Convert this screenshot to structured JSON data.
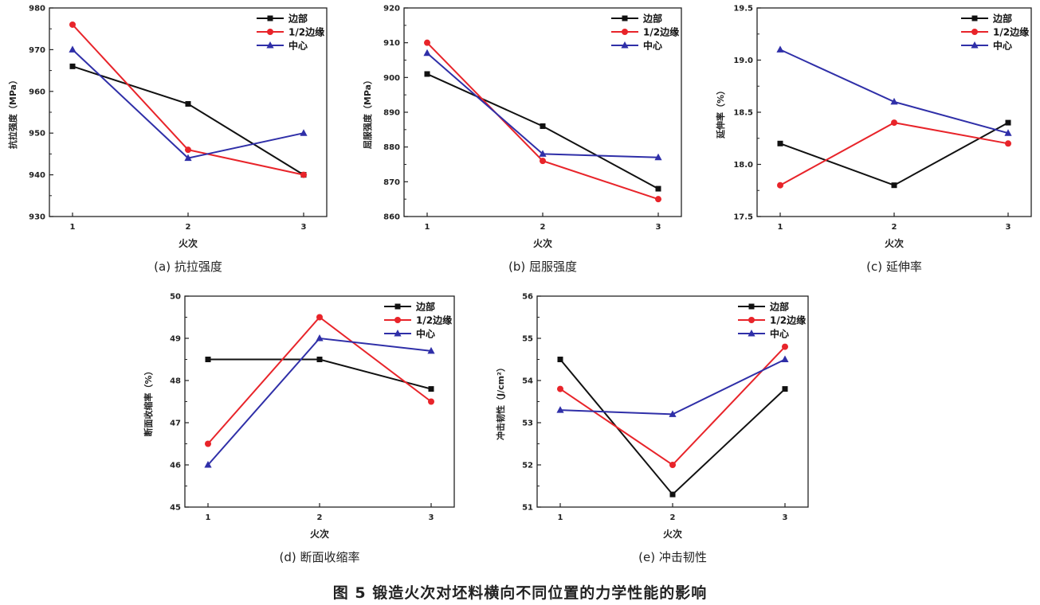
{
  "figure": {
    "caption": "图 5 锻造火次对坯料横向不同位置的力学性能的影响"
  },
  "colors": {
    "边部": "#111111",
    "1/2边缘": "#e8242a",
    "中心": "#2f2fa8"
  },
  "chart_data": [
    {
      "id": "a",
      "type": "line",
      "caption": "(a) 抗拉强度",
      "xlabel": "火次",
      "ylabel": "抗拉强度（MPa）",
      "x": [
        1,
        2,
        3
      ],
      "ylim": [
        930,
        980
      ],
      "yticks": [
        930,
        940,
        950,
        960,
        970,
        980
      ],
      "legend_position": "top-right",
      "series": [
        {
          "name": "边部",
          "marker": "square",
          "values": [
            966,
            957,
            940
          ]
        },
        {
          "name": "1/2边缘",
          "marker": "circle",
          "values": [
            976,
            946,
            940
          ]
        },
        {
          "name": "中心",
          "marker": "triangle",
          "values": [
            970,
            944,
            950
          ]
        }
      ]
    },
    {
      "id": "b",
      "type": "line",
      "caption": "(b) 屈服强度",
      "xlabel": "火次",
      "ylabel": "屈服强度（MPa）",
      "x": [
        1,
        2,
        3
      ],
      "ylim": [
        860,
        920
      ],
      "yticks": [
        860,
        870,
        880,
        890,
        900,
        910,
        920
      ],
      "legend_position": "top-right",
      "series": [
        {
          "name": "边部",
          "marker": "square",
          "values": [
            901,
            886,
            868
          ]
        },
        {
          "name": "1/2边缘",
          "marker": "circle",
          "values": [
            910,
            876,
            865
          ]
        },
        {
          "name": "中心",
          "marker": "triangle",
          "values": [
            907,
            878,
            877
          ]
        }
      ]
    },
    {
      "id": "c",
      "type": "line",
      "caption": "(c) 延伸率",
      "xlabel": "火次",
      "ylabel": "延伸率（%）",
      "x": [
        1,
        2,
        3
      ],
      "ylim": [
        17.5,
        19.5
      ],
      "yticks": [
        17.5,
        18.0,
        18.5,
        19.0,
        19.5
      ],
      "legend_position": "top-right",
      "series": [
        {
          "name": "边部",
          "marker": "square",
          "values": [
            18.2,
            17.8,
            18.4
          ]
        },
        {
          "name": "1/2边缘",
          "marker": "circle",
          "values": [
            17.8,
            18.4,
            18.2
          ]
        },
        {
          "name": "中心",
          "marker": "triangle",
          "values": [
            19.1,
            18.6,
            18.3
          ]
        }
      ]
    },
    {
      "id": "d",
      "type": "line",
      "caption": "(d) 断面收缩率",
      "xlabel": "火次",
      "ylabel": "断面收缩率（%）",
      "x": [
        1,
        2,
        3
      ],
      "ylim": [
        45,
        50
      ],
      "yticks": [
        45,
        46,
        47,
        48,
        49,
        50
      ],
      "legend_position": "top-right",
      "series": [
        {
          "name": "边部",
          "marker": "square",
          "values": [
            48.5,
            48.5,
            47.8
          ]
        },
        {
          "name": "1/2边缘",
          "marker": "circle",
          "values": [
            46.5,
            49.5,
            47.5
          ]
        },
        {
          "name": "中心",
          "marker": "triangle",
          "values": [
            46.0,
            49.0,
            48.7
          ]
        }
      ]
    },
    {
      "id": "e",
      "type": "line",
      "caption": "(e) 冲击韧性",
      "xlabel": "火次",
      "ylabel": "冲击韧性（J/cm²）",
      "x": [
        1,
        2,
        3
      ],
      "ylim": [
        51,
        56
      ],
      "yticks": [
        51,
        52,
        53,
        54,
        55,
        56
      ],
      "legend_position": "top-right",
      "series": [
        {
          "name": "边部",
          "marker": "square",
          "values": [
            54.5,
            51.3,
            53.8
          ]
        },
        {
          "name": "1/2边缘",
          "marker": "circle",
          "values": [
            53.8,
            52.0,
            54.8
          ]
        },
        {
          "name": "中心",
          "marker": "triangle",
          "values": [
            53.3,
            53.2,
            54.5
          ]
        }
      ]
    }
  ]
}
